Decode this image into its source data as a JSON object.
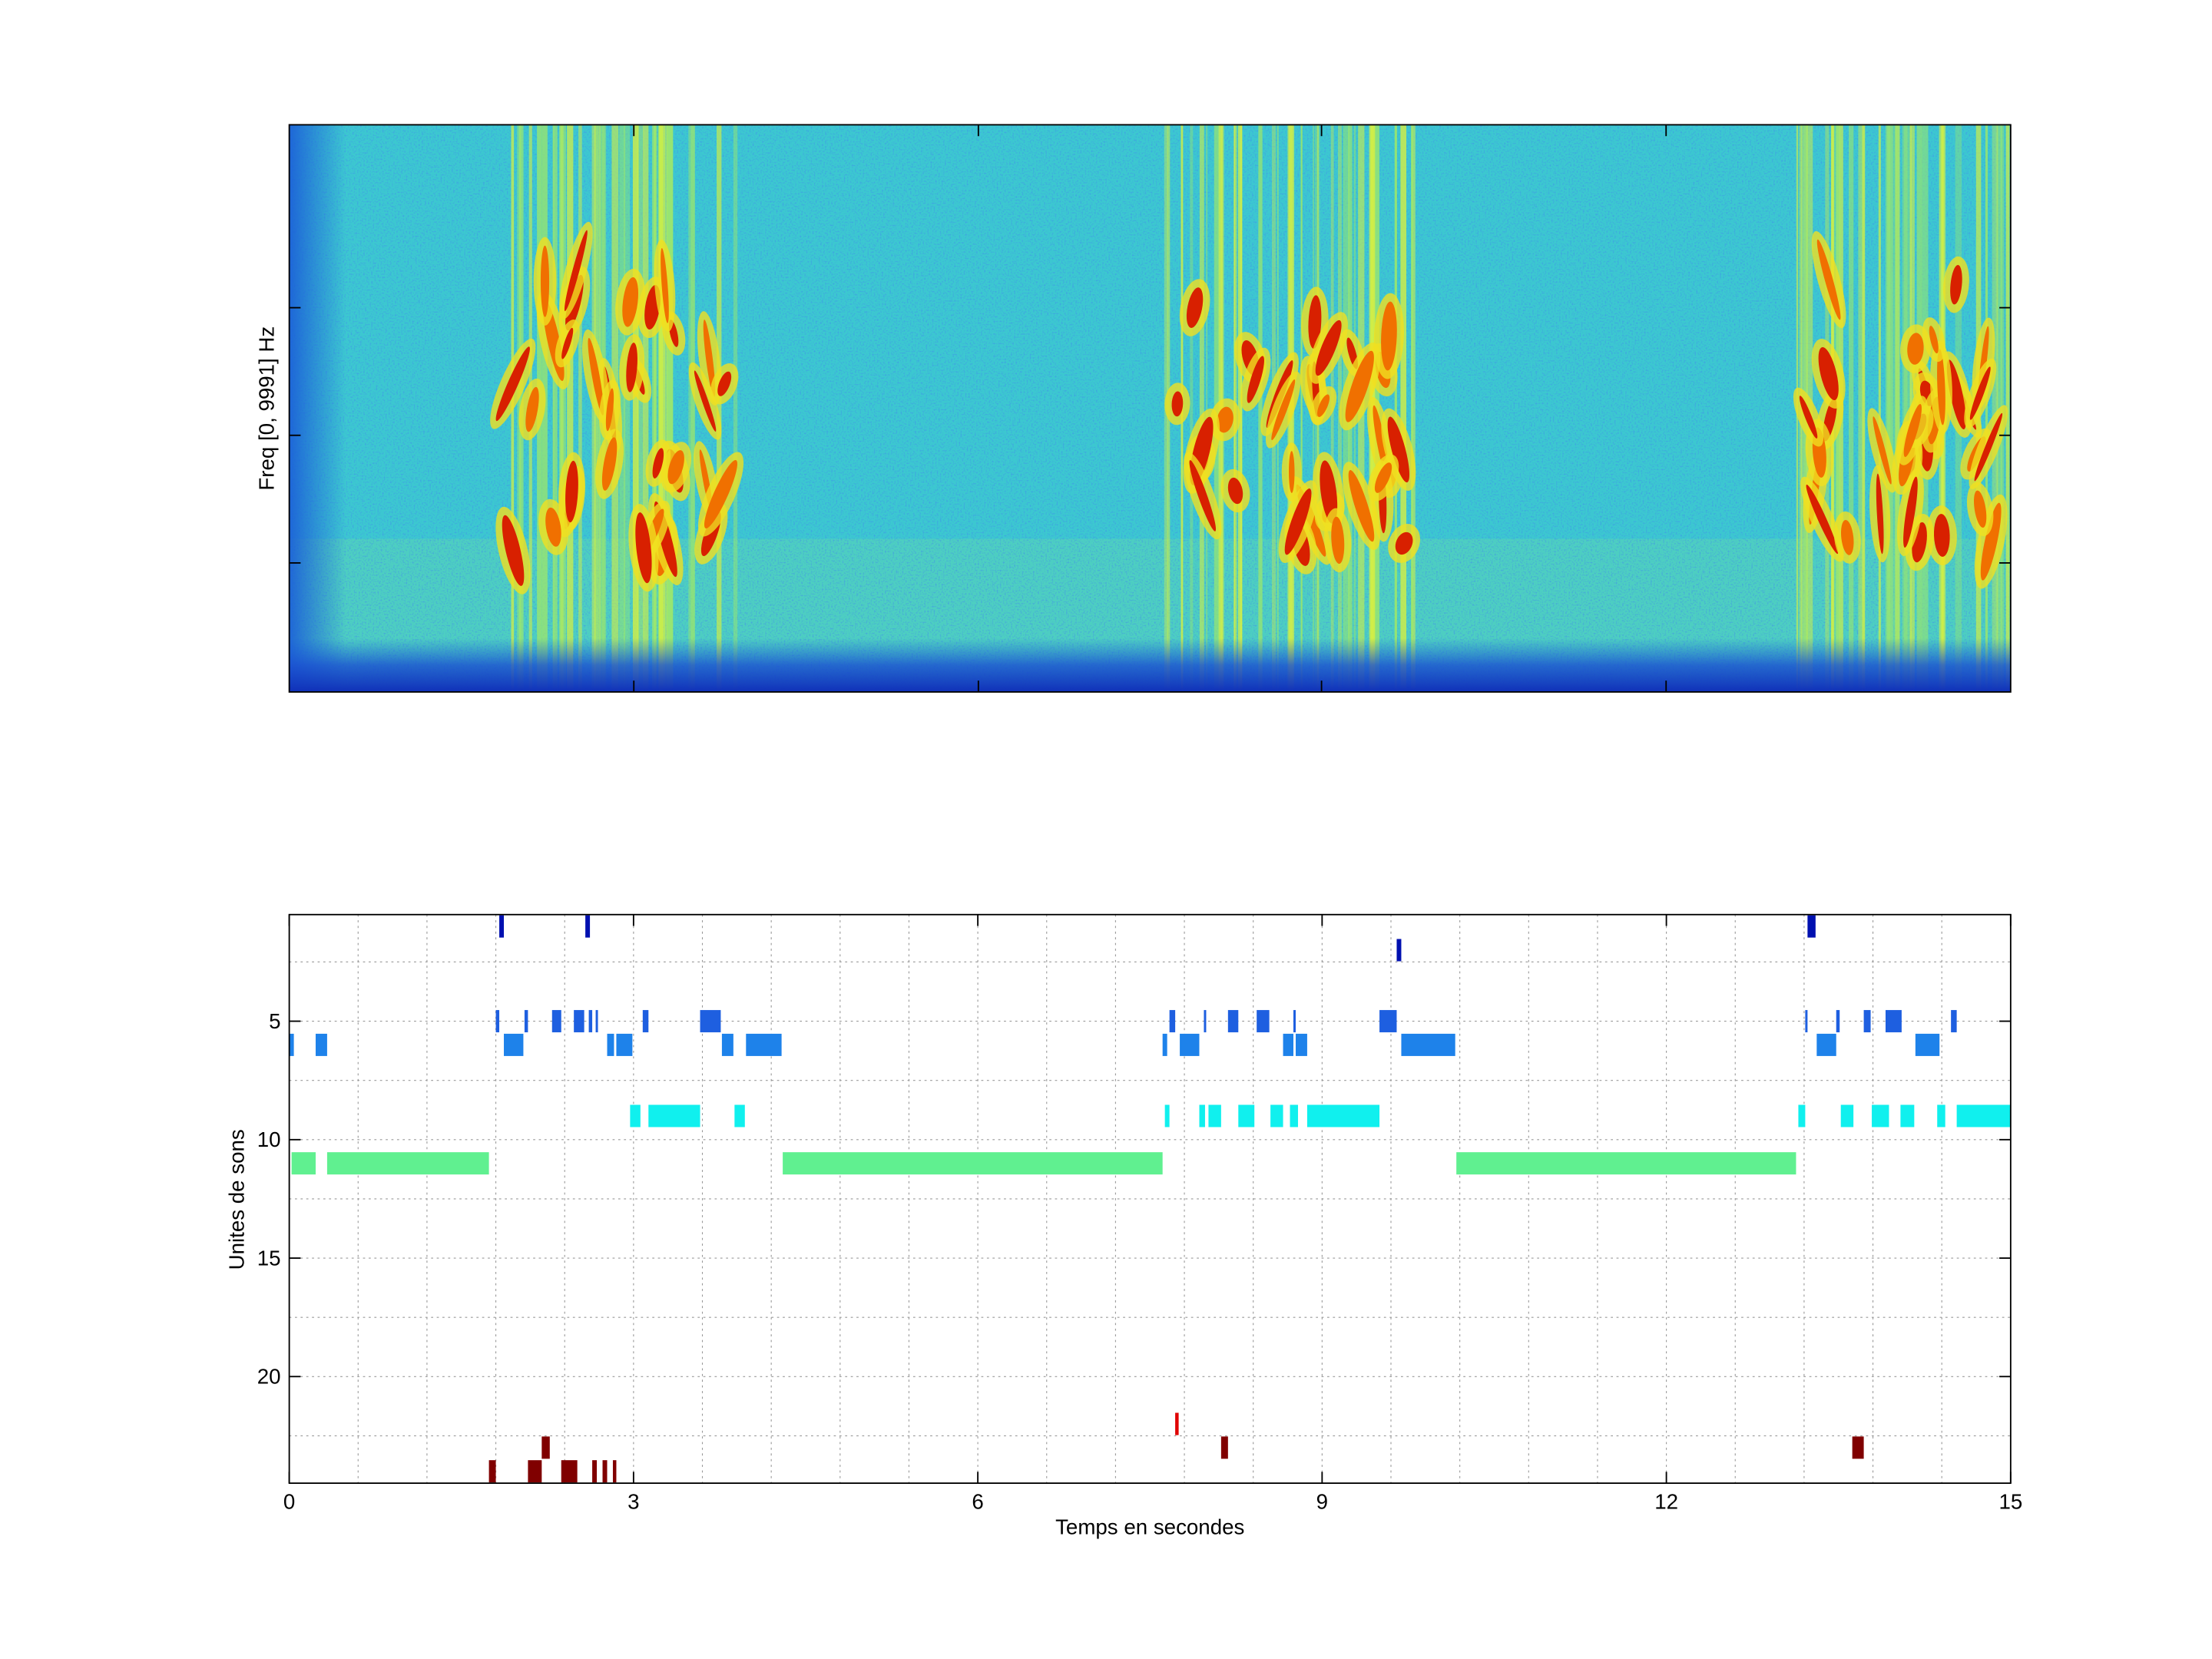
{
  "chart_data": [
    {
      "type": "spectrogram",
      "ylabel": "Freq [0, 9991] Hz"
    },
    {
      "type": "event-raster",
      "xlabel": "Temps en secondes",
      "ylabel": "Unites de sons",
      "xlim": [
        0,
        15
      ],
      "ylim": [
        24.5,
        0.5
      ],
      "xticks": [
        0,
        3,
        6,
        9,
        12,
        15
      ],
      "yticks": [
        5,
        10,
        15,
        20
      ],
      "xminorticks": [
        0.6,
        1.2,
        1.8,
        2.4,
        3.6,
        4.2,
        4.8,
        5.4,
        6.6,
        7.2,
        7.8,
        8.4,
        9.6,
        10.2,
        10.8,
        11.4,
        12.6,
        13.2,
        13.8,
        14.4
      ],
      "yminorticks": [
        2.5,
        7.5,
        12.5,
        17.5,
        22.5
      ],
      "grid": true,
      "units": [
        {
          "unit": 1,
          "color": "#0010b0",
          "intervals": [
            [
              1.83,
              1.87
            ],
            [
              2.58,
              2.62
            ],
            [
              13.23,
              13.3
            ]
          ]
        },
        {
          "unit": 2,
          "color": "#0010b0",
          "intervals": [
            [
              9.65,
              9.69
            ]
          ]
        },
        {
          "unit": 5,
          "color": "#1e5fe0",
          "intervals": [
            [
              1.8,
              1.83
            ],
            [
              2.05,
              2.08
            ],
            [
              2.29,
              2.37
            ],
            [
              2.48,
              2.57
            ],
            [
              2.61,
              2.64
            ],
            [
              2.67,
              2.69
            ],
            [
              3.08,
              3.13
            ],
            [
              3.58,
              3.76
            ],
            [
              7.67,
              7.72
            ],
            [
              7.97,
              7.99
            ],
            [
              8.18,
              8.27
            ],
            [
              8.43,
              8.54
            ],
            [
              8.75,
              8.77
            ],
            [
              9.5,
              9.65
            ],
            [
              13.21,
              13.23
            ],
            [
              13.48,
              13.51
            ],
            [
              13.72,
              13.78
            ],
            [
              13.91,
              14.05
            ],
            [
              14.48,
              14.53
            ]
          ]
        },
        {
          "unit": 6,
          "color": "#1e82ea",
          "intervals": [
            [
              0,
              0.04
            ],
            [
              0.23,
              0.33
            ],
            [
              1.87,
              2.04
            ],
            [
              2.77,
              2.83
            ],
            [
              2.85,
              2.99
            ],
            [
              3.77,
              3.87
            ],
            [
              3.98,
              4.29
            ],
            [
              7.61,
              7.65
            ],
            [
              7.76,
              7.93
            ],
            [
              8.66,
              8.75
            ],
            [
              8.77,
              8.87
            ],
            [
              9.69,
              10.16
            ],
            [
              13.31,
              13.48
            ],
            [
              14.17,
              14.38
            ]
          ]
        },
        {
          "unit": 9,
          "color": "#10f0ee",
          "intervals": [
            [
              2.97,
              3.06
            ],
            [
              3.13,
              3.58
            ],
            [
              3.88,
              3.97
            ],
            [
              7.63,
              7.67
            ],
            [
              7.93,
              7.98
            ],
            [
              8.01,
              8.12
            ],
            [
              8.27,
              8.41
            ],
            [
              8.55,
              8.66
            ],
            [
              8.72,
              8.79
            ],
            [
              8.87,
              9.5
            ],
            [
              13.15,
              13.21
            ],
            [
              13.52,
              13.63
            ],
            [
              13.79,
              13.94
            ],
            [
              14.04,
              14.16
            ],
            [
              14.36,
              14.43
            ],
            [
              14.53,
              15
            ]
          ]
        },
        {
          "unit": 11,
          "color": "#60f090",
          "intervals": [
            [
              0.02,
              0.23
            ],
            [
              0.33,
              1.74
            ],
            [
              4.3,
              7.61
            ],
            [
              10.17,
              13.13
            ]
          ]
        },
        {
          "unit": 22,
          "color": "#e00000",
          "intervals": [
            [
              7.72,
              7.75
            ]
          ]
        },
        {
          "unit": 23,
          "color": "#800000",
          "intervals": [
            [
              2.2,
              2.27
            ],
            [
              8.12,
              8.18
            ],
            [
              13.62,
              13.72
            ]
          ]
        },
        {
          "unit": 24,
          "color": "#800000",
          "intervals": [
            [
              1.74,
              1.8
            ],
            [
              2.08,
              2.2
            ],
            [
              2.37,
              2.51
            ],
            [
              2.64,
              2.68
            ],
            [
              2.73,
              2.77
            ],
            [
              2.82,
              2.85
            ]
          ]
        }
      ]
    }
  ]
}
